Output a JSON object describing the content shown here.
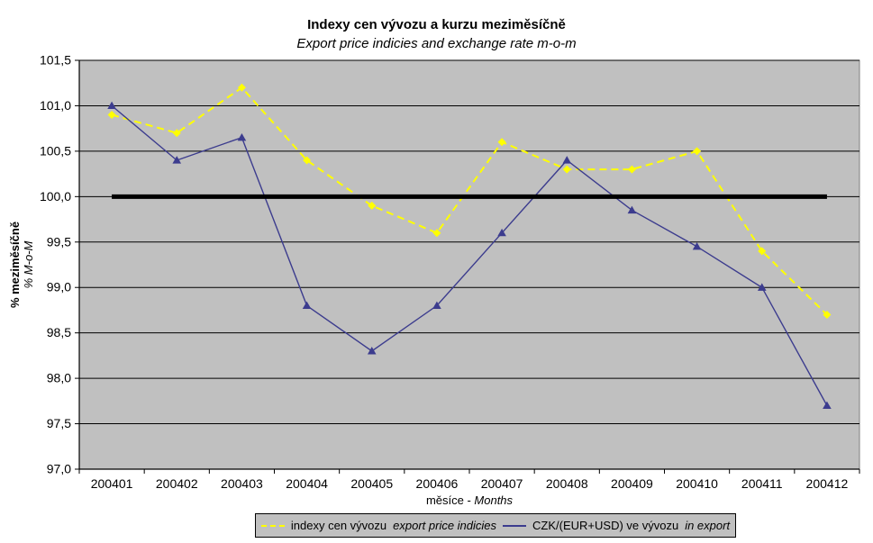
{
  "title": "Indexy cen vývozu a kurzu meziměsíčně",
  "subtitle": "Export price indicies and exchange rate m-o-m",
  "y_axis": {
    "title_cs": "% meziměsíčně",
    "title_en": "% M-o-M"
  },
  "x_axis": {
    "title_cs": "měsíce -",
    "title_en": "Months"
  },
  "legend": {
    "position": "bottom",
    "items": [
      {
        "label_cs": "indexy cen vývozu",
        "label_en": "export price indicies",
        "color": "#FFFF00",
        "line_style": "dashed",
        "marker": "diamond"
      },
      {
        "label_cs": "CZK/(EUR+USD) ve vývozu",
        "label_en": "in export",
        "color": "#3C3C8E",
        "line_style": "solid",
        "marker": "triangle"
      }
    ]
  },
  "chart_data": {
    "type": "line",
    "title": "Indexy cen vývozu a kurzu meziměsíčně",
    "subtitle": "Export price indicies and exchange rate m-o-m",
    "xlabel": "měsíce - Months",
    "ylabel": "% meziměsíčně / % M-o-M",
    "ylim": [
      97.0,
      101.5
    ],
    "y_tick_step": 0.5,
    "grid": true,
    "legend_position": "bottom",
    "categories": [
      "200401",
      "200402",
      "200403",
      "200404",
      "200405",
      "200406",
      "200407",
      "200408",
      "200409",
      "200410",
      "200411",
      "200412"
    ],
    "series": [
      {
        "name": "indexy cen vývozu / export price indicies",
        "color": "#FFFF00",
        "style": "dashed",
        "marker": "diamond",
        "values": [
          100.9,
          100.7,
          101.2,
          100.4,
          99.9,
          99.6,
          100.6,
          100.3,
          100.3,
          100.5,
          99.4,
          98.7
        ]
      },
      {
        "name": "CZK/(EUR+USD) ve vývozu / in export",
        "color": "#3C3C8E",
        "style": "solid",
        "marker": "triangle",
        "values": [
          101.0,
          100.4,
          100.65,
          98.8,
          98.3,
          98.8,
          99.6,
          100.4,
          99.85,
          99.45,
          99.0,
          97.7
        ]
      }
    ],
    "y_ticks": [
      {
        "value": 101.5,
        "label": "101,5"
      },
      {
        "value": 101.0,
        "label": "101,0"
      },
      {
        "value": 100.5,
        "label": "100,5"
      },
      {
        "value": 100.0,
        "label": "100,0"
      },
      {
        "value": 99.5,
        "label": "99,5"
      },
      {
        "value": 99.0,
        "label": "99,0"
      },
      {
        "value": 98.5,
        "label": "98,5"
      },
      {
        "value": 98.0,
        "label": "98,0"
      },
      {
        "value": 97.5,
        "label": "97,5"
      },
      {
        "value": 97.0,
        "label": "97,0"
      }
    ],
    "reference_line": {
      "value": 100.0,
      "color": "#000000",
      "width": 5
    },
    "colors": {
      "plot_background": "#C0C0C0",
      "plot_border": "#808080",
      "gridline": "#000000",
      "axis": "#000000"
    }
  }
}
